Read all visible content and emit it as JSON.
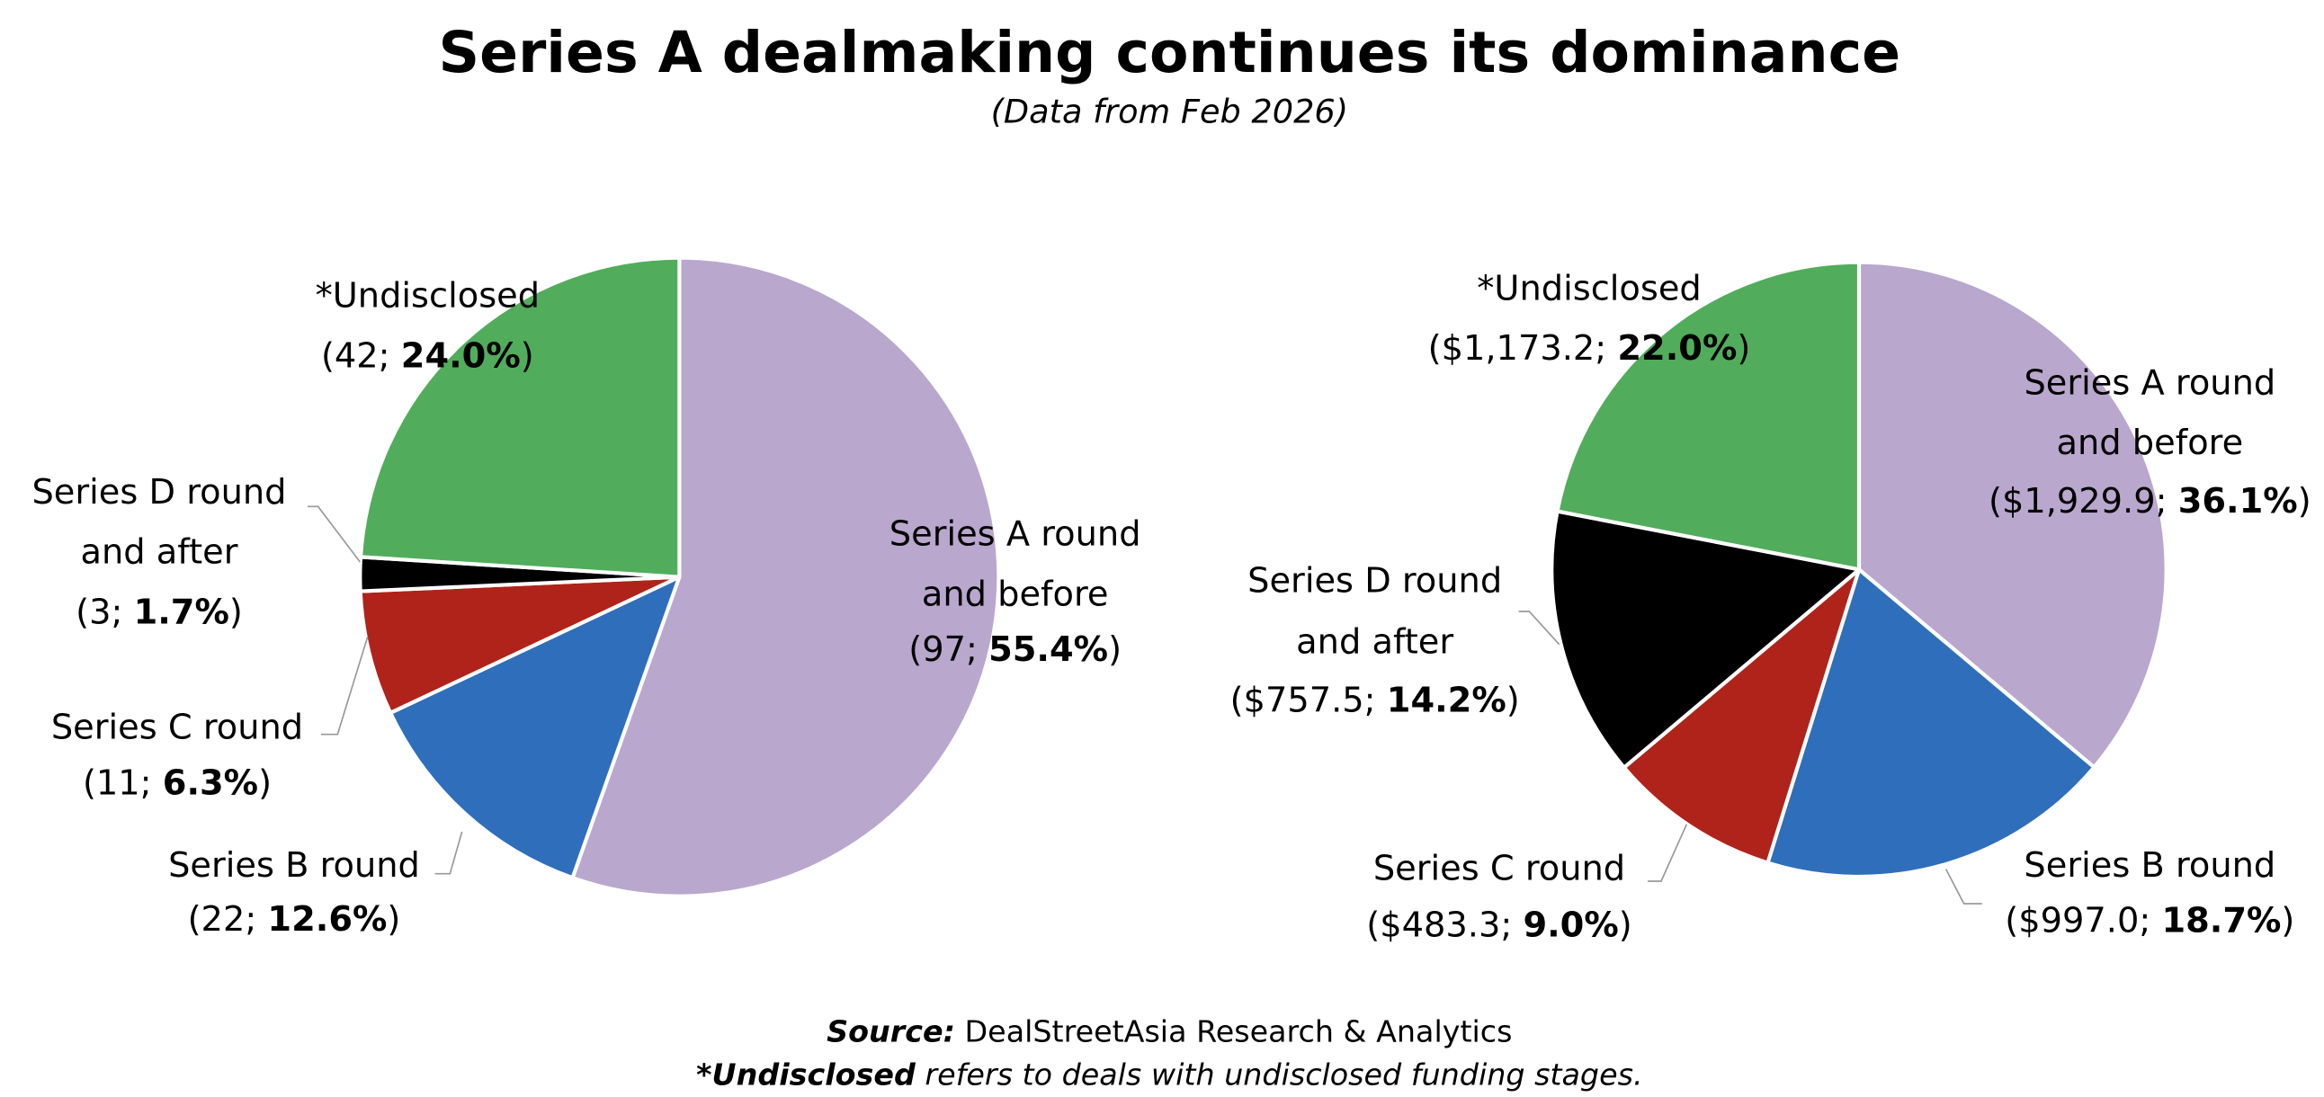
{
  "chart_data": {
    "title": "Series A dealmaking continues its dominance",
    "subtitle": "(Data from Feb 2026)",
    "type": "pie",
    "charts": [
      {
        "type": "pie",
        "measure": "deal count",
        "slices": [
          {
            "name": "Series A round and before",
            "lines": [
              "Series A round",
              "and before"
            ],
            "value": 97,
            "value_label": "97",
            "percent": 55.4,
            "percent_label": "55.4%",
            "color": "#B9A7CD"
          },
          {
            "name": "Series B round",
            "lines": [
              "Series B round"
            ],
            "value": 22,
            "value_label": "22",
            "percent": 12.6,
            "percent_label": "12.6%",
            "color": "#2F6EBA"
          },
          {
            "name": "Series C round",
            "lines": [
              "Series C round"
            ],
            "value": 11,
            "value_label": "11",
            "percent": 6.3,
            "percent_label": "6.3%",
            "color": "#B0231A"
          },
          {
            "name": "Series D round and after",
            "lines": [
              "Series D round",
              "and after"
            ],
            "value": 3,
            "value_label": "3",
            "percent": 1.7,
            "percent_label": "1.7%",
            "color": "#000000"
          },
          {
            "name": "*Undisclosed",
            "lines": [
              "*Undisclosed"
            ],
            "value": 42,
            "value_label": "42",
            "percent": 24.0,
            "percent_label": "24.0%",
            "color": "#51AD5C"
          }
        ]
      },
      {
        "type": "pie",
        "measure": "deal value",
        "slices": [
          {
            "name": "Series A round and before",
            "lines": [
              "Series A round",
              "and before"
            ],
            "value": 1929.9,
            "value_label": "$1,929.9",
            "percent": 36.1,
            "percent_label": "36.1%",
            "color": "#B9A7CD"
          },
          {
            "name": "Series B round",
            "lines": [
              "Series B round"
            ],
            "value": 997.0,
            "value_label": "$997.0",
            "percent": 18.7,
            "percent_label": "18.7%",
            "color": "#2F6EBA"
          },
          {
            "name": "Series C round",
            "lines": [
              "Series C round"
            ],
            "value": 483.3,
            "value_label": "$483.3",
            "percent": 9.0,
            "percent_label": "9.0%",
            "color": "#B0231A"
          },
          {
            "name": "Series D round and after",
            "lines": [
              "Series D round",
              "and after"
            ],
            "value": 757.5,
            "value_label": "$757.5",
            "percent": 14.2,
            "percent_label": "14.2%",
            "color": "#000000"
          },
          {
            "name": "*Undisclosed",
            "lines": [
              "*Undisclosed"
            ],
            "value": 1173.2,
            "value_label": "$1,173.2",
            "percent": 22.0,
            "percent_label": "22.0%",
            "color": "#51AD5C"
          }
        ]
      }
    ],
    "footer": {
      "source_label": "Source:",
      "source_text": " DealStreetAsia Research & Analytics",
      "note_label": "*Undisclosed",
      "note_text": " refers to deals with undisclosed funding stages."
    }
  }
}
